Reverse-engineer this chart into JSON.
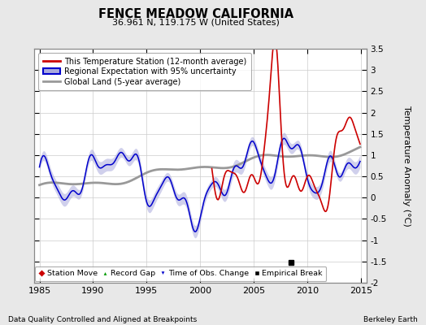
{
  "title": "FENCE MEADOW CALIFORNIA",
  "subtitle": "36.961 N, 119.175 W (United States)",
  "ylabel": "Temperature Anomaly (°C)",
  "xlabel_left": "Data Quality Controlled and Aligned at Breakpoints",
  "xlabel_right": "Berkeley Earth",
  "xlim": [
    1984.5,
    2015.5
  ],
  "ylim": [
    -2.0,
    3.5
  ],
  "yticks": [
    -2,
    -1.5,
    -1,
    -0.5,
    0,
    0.5,
    1,
    1.5,
    2,
    2.5,
    3,
    3.5
  ],
  "xticks": [
    1985,
    1990,
    1995,
    2000,
    2005,
    2010,
    2015
  ],
  "background_color": "#e8e8e8",
  "plot_background": "#ffffff",
  "grid_color": "#cccccc",
  "red_color": "#cc0000",
  "blue_color": "#0000cc",
  "blue_fill_color": "#aaaadd",
  "gray_color": "#999999",
  "empirical_break_x": 2008.5,
  "empirical_break_y": -1.52,
  "legend1_entries": [
    "This Temperature Station (12-month average)",
    "Regional Expectation with 95% uncertainty",
    "Global Land (5-year average)"
  ],
  "legend2_entries": [
    "Station Move",
    "Record Gap",
    "Time of Obs. Change",
    "Empirical Break"
  ],
  "station_start_year": 2001.0
}
